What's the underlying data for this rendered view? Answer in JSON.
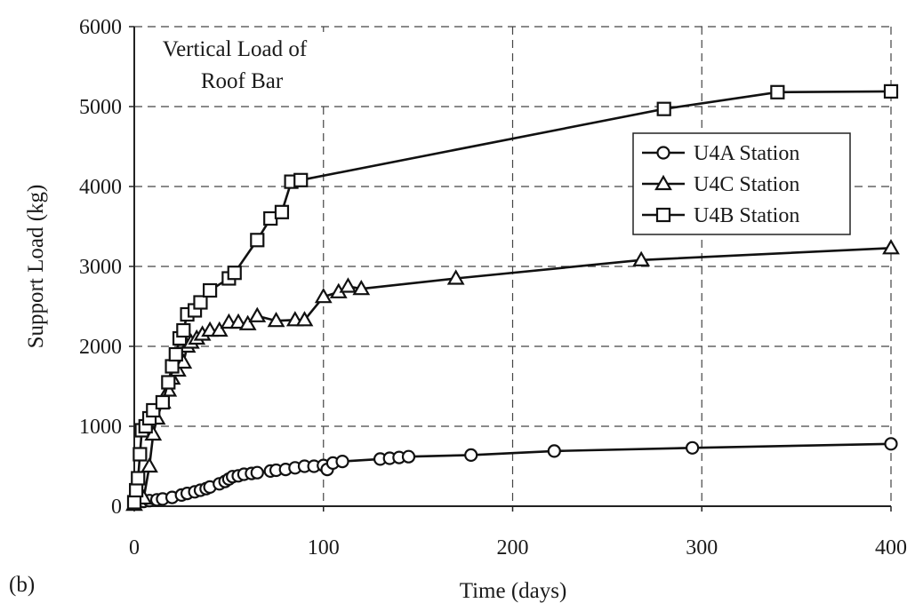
{
  "chart_data": {
    "type": "line",
    "panel_label": "(b)",
    "annotation": [
      "Vertical Load of",
      "Roof Bar"
    ],
    "xlabel": "Time (days)",
    "ylabel": "Support Load (kg)",
    "xlim": [
      0,
      400
    ],
    "ylim": [
      0,
      6000
    ],
    "x_ticks": [
      "0",
      "100",
      "200",
      "300",
      "400"
    ],
    "y_ticks": [
      "0",
      "1000",
      "2000",
      "3000",
      "4000",
      "5000",
      "6000"
    ],
    "grid": true,
    "legend_position": "right",
    "series": [
      {
        "name": "U4A Station",
        "marker": "circle",
        "points": [
          [
            0,
            30
          ],
          [
            2,
            50
          ],
          [
            5,
            60
          ],
          [
            8,
            70
          ],
          [
            12,
            80
          ],
          [
            15,
            90
          ],
          [
            20,
            110
          ],
          [
            25,
            140
          ],
          [
            28,
            160
          ],
          [
            32,
            180
          ],
          [
            35,
            200
          ],
          [
            38,
            220
          ],
          [
            40,
            240
          ],
          [
            45,
            280
          ],
          [
            48,
            310
          ],
          [
            50,
            340
          ],
          [
            52,
            370
          ],
          [
            55,
            380
          ],
          [
            58,
            400
          ],
          [
            62,
            410
          ],
          [
            65,
            420
          ],
          [
            72,
            440
          ],
          [
            75,
            450
          ],
          [
            80,
            460
          ],
          [
            85,
            480
          ],
          [
            90,
            500
          ],
          [
            95,
            500
          ],
          [
            100,
            510
          ],
          [
            102,
            460
          ],
          [
            105,
            540
          ],
          [
            110,
            560
          ],
          [
            130,
            590
          ],
          [
            135,
            600
          ],
          [
            140,
            610
          ],
          [
            145,
            620
          ],
          [
            178,
            640
          ],
          [
            222,
            690
          ],
          [
            295,
            730
          ],
          [
            400,
            780
          ]
        ]
      },
      {
        "name": "U4C Station",
        "marker": "triangle",
        "points": [
          [
            0,
            20
          ],
          [
            5,
            100
          ],
          [
            8,
            500
          ],
          [
            10,
            900
          ],
          [
            12,
            1100
          ],
          [
            15,
            1300
          ],
          [
            18,
            1450
          ],
          [
            20,
            1600
          ],
          [
            23,
            1700
          ],
          [
            26,
            1800
          ],
          [
            28,
            2000
          ],
          [
            30,
            2050
          ],
          [
            33,
            2100
          ],
          [
            36,
            2150
          ],
          [
            40,
            2200
          ],
          [
            45,
            2200
          ],
          [
            50,
            2300
          ],
          [
            55,
            2300
          ],
          [
            60,
            2280
          ],
          [
            65,
            2380
          ],
          [
            75,
            2320
          ],
          [
            85,
            2330
          ],
          [
            90,
            2330
          ],
          [
            100,
            2620
          ],
          [
            108,
            2680
          ],
          [
            113,
            2750
          ],
          [
            120,
            2720
          ],
          [
            170,
            2850
          ],
          [
            268,
            3080
          ],
          [
            400,
            3230
          ]
        ]
      },
      {
        "name": "U4B Station",
        "marker": "square",
        "points": [
          [
            0,
            50
          ],
          [
            1,
            200
          ],
          [
            2,
            350
          ],
          [
            3,
            650
          ],
          [
            4,
            950
          ],
          [
            6,
            1000
          ],
          [
            8,
            1100
          ],
          [
            10,
            1200
          ],
          [
            15,
            1300
          ],
          [
            18,
            1550
          ],
          [
            20,
            1750
          ],
          [
            22,
            1900
          ],
          [
            24,
            2100
          ],
          [
            26,
            2200
          ],
          [
            28,
            2400
          ],
          [
            32,
            2450
          ],
          [
            35,
            2550
          ],
          [
            40,
            2700
          ],
          [
            50,
            2850
          ],
          [
            53,
            2920
          ],
          [
            65,
            3330
          ],
          [
            72,
            3600
          ],
          [
            78,
            3680
          ],
          [
            83,
            4060
          ],
          [
            88,
            4080
          ],
          [
            280,
            4970
          ],
          [
            340,
            5180
          ],
          [
            400,
            5190
          ]
        ]
      }
    ]
  }
}
